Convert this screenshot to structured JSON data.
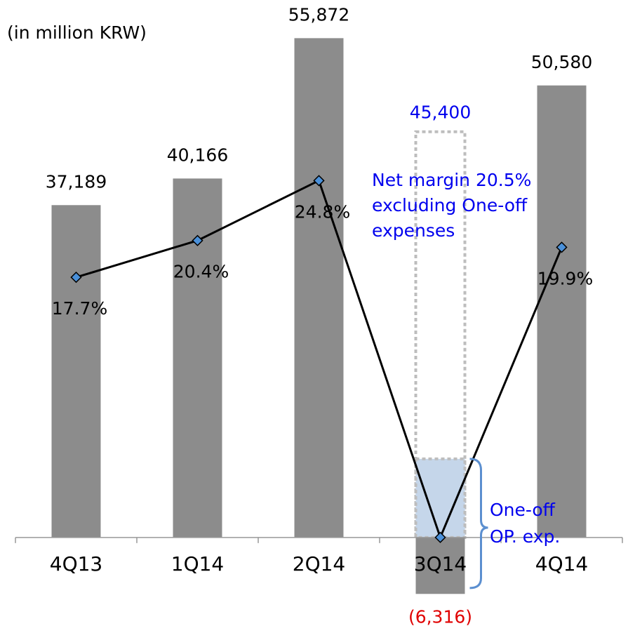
{
  "chart_data": {
    "type": "bar",
    "unit_label": "(in million KRW)",
    "categories": [
      "4Q13",
      "1Q14",
      "2Q14",
      "3Q14",
      "4Q14"
    ],
    "series": [
      {
        "type": "bar",
        "color": "#8c8c8c",
        "values": [
          37189,
          40166,
          55872,
          -6316,
          50580
        ],
        "value_labels": [
          "37,189",
          "40,166",
          "55,872",
          "(6,316)",
          "50,580"
        ],
        "label_colors": [
          "#000000",
          "#000000",
          "#000000",
          "#e00000",
          "#000000"
        ]
      },
      {
        "type": "line",
        "axis": "y2",
        "color": "#000000",
        "marker_color": "#4a90d9",
        "values": [
          17.7,
          20.4,
          24.8,
          -1.4,
          19.9
        ],
        "value_labels": [
          "17.7%",
          "20.4%",
          "24.8%",
          null,
          "19.9%"
        ]
      }
    ],
    "adjusted": {
      "category": 3,
      "value": 45400,
      "value_label": "45,400",
      "color": "#0000ee",
      "note": [
        "Net margin 20.5%",
        "excluding One-off",
        "expenses"
      ]
    },
    "one_off": {
      "note": [
        "One-off",
        "OP. exp."
      ],
      "color": "#0000ee"
    },
    "ylim": [
      -7000,
      57000
    ],
    "y2lim": [
      -6,
      36
    ]
  }
}
